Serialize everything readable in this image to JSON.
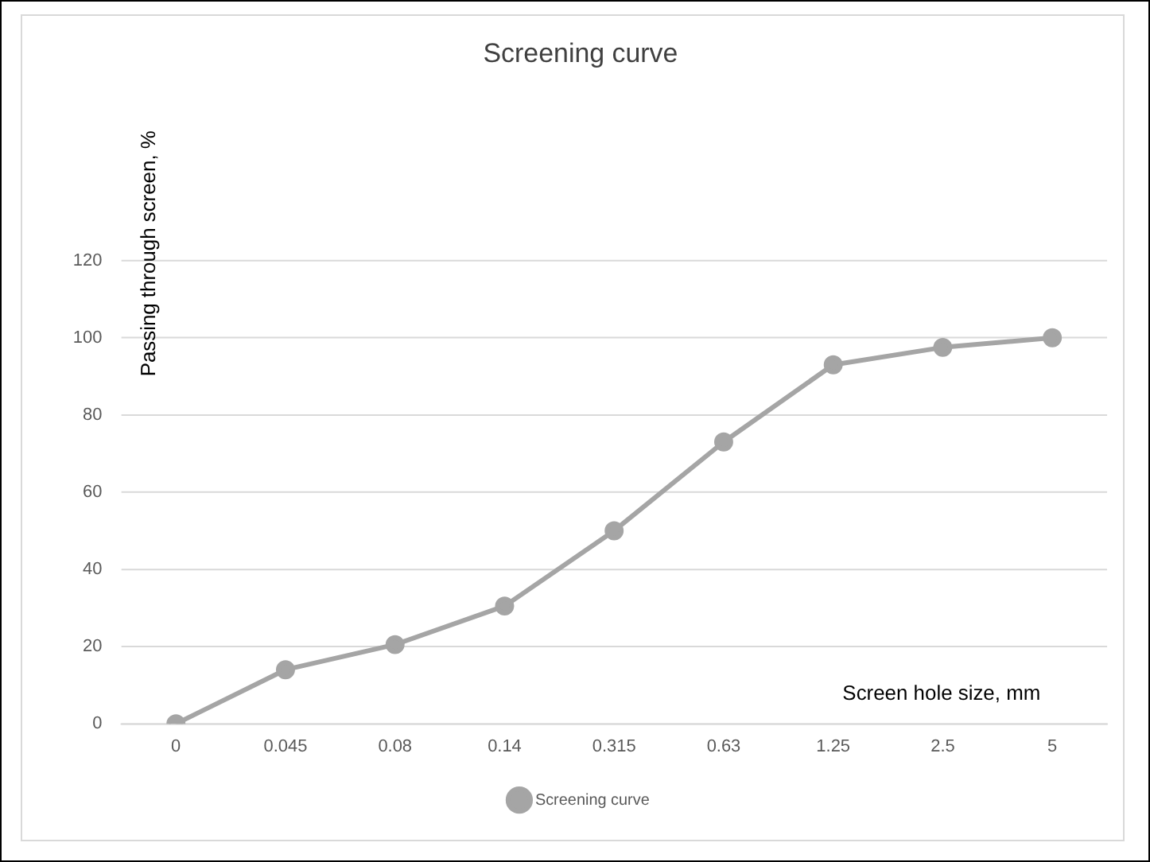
{
  "chart_data": {
    "type": "line",
    "title": "Screening curve",
    "xlabel": "Screen hole size, mm",
    "ylabel": "Passing through screen, %",
    "categories": [
      "0",
      "0.045",
      "0.08",
      "0.14",
      "0.315",
      "0.63",
      "1.25",
      "2.5",
      "5"
    ],
    "series": [
      {
        "name": "Screening curve",
        "color": "#a5a5a5",
        "values": [
          0,
          14,
          20.5,
          30.5,
          50,
          73,
          93,
          97.5,
          100
        ]
      }
    ],
    "ylim": [
      0,
      120
    ],
    "yticks": [
      0,
      20,
      40,
      60,
      80,
      100,
      120
    ],
    "grid": "y",
    "legend": "bottom",
    "marker": "circle",
    "line_style": "solid"
  }
}
